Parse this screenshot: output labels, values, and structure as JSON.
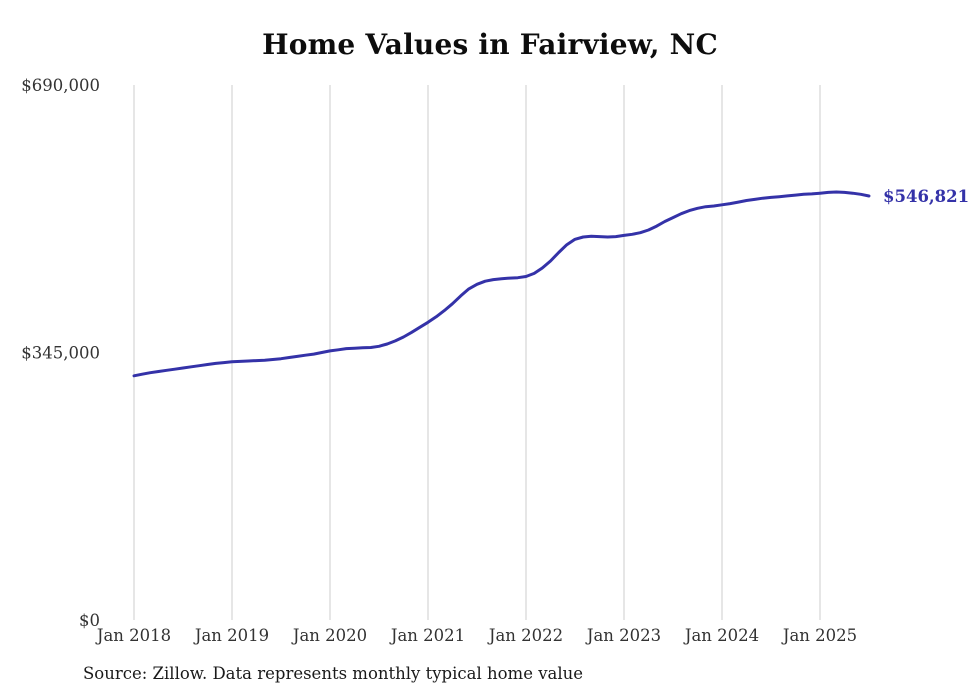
{
  "page": {
    "background_color": "#ffffff"
  },
  "chart": {
    "title": "Home Values in Fairview, NC",
    "source_note": "Source: Zillow. Data represents monthly typical home value",
    "colors": {
      "line": "#3432a8",
      "gridline": "#cccccc",
      "axis_label": "#333333",
      "title": "#0d0d0d",
      "end_label": "#3432a8"
    }
  },
  "chart_data": {
    "type": "line",
    "title": "Home Values in Fairview, NC",
    "unit": "USD",
    "grid": "vertical-only",
    "legend": "none",
    "ylim": [
      0,
      690000
    ],
    "y_ticks": [
      {
        "value": 0,
        "label": "$0"
      },
      {
        "value": 345000,
        "label": "$345,000"
      },
      {
        "value": 690000,
        "label": "$690,000"
      }
    ],
    "x_tick_labels": [
      "Jan 2018",
      "Jan 2019",
      "Jan 2020",
      "Jan 2021",
      "Jan 2022",
      "Jan 2023",
      "Jan 2024",
      "Jan 2025"
    ],
    "x_tick_month_indices": [
      0,
      12,
      24,
      36,
      48,
      60,
      72,
      84
    ],
    "end_value_label": "$546,821",
    "series": [
      {
        "name": "Typical home value",
        "start": "Jan 2018",
        "interval": "monthly",
        "values": [
          315000,
          317000,
          319000,
          320500,
          322000,
          323500,
          325000,
          326500,
          328000,
          329500,
          331000,
          332000,
          333000,
          333500,
          334000,
          334500,
          335000,
          336000,
          337000,
          338500,
          340000,
          341500,
          343000,
          345000,
          347000,
          348500,
          350000,
          350500,
          351000,
          351500,
          353000,
          356000,
          360000,
          365000,
          371000,
          377500,
          384000,
          391000,
          399000,
          408000,
          418000,
          427000,
          433000,
          437000,
          439000,
          440000,
          441000,
          441500,
          443000,
          447000,
          454000,
          463000,
          474000,
          484000,
          491000,
          494000,
          495000,
          494500,
          494000,
          494500,
          496000,
          497500,
          499500,
          503000,
          508000,
          514000,
          519000,
          524000,
          528000,
          531000,
          533000,
          534000,
          535500,
          537000,
          539000,
          541000,
          542500,
          544000,
          545000,
          546000,
          547000,
          548000,
          549000,
          549500,
          550500,
          551500,
          552000,
          551500,
          550500,
          549000,
          546821
        ]
      }
    ]
  }
}
